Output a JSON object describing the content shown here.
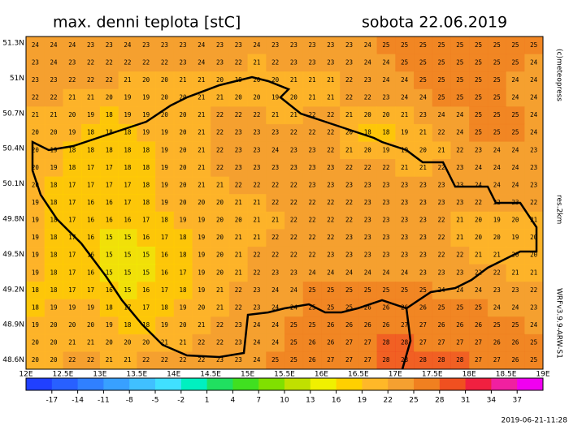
{
  "header": {
    "title": "max. denni teplota [stC]",
    "date": "sobota 22.06.2019"
  },
  "side": {
    "copyright": "(c)meteopress",
    "resolution": "res.2km",
    "model": "WRFv3.9.9-ARW-S1"
  },
  "timestamp": "2019-06-21-11:28",
  "lat_labels": [
    "51.3N",
    "51N",
    "50.7N",
    "50.4N",
    "50.1N",
    "49.8N",
    "49.5N",
    "49.2N",
    "48.9N",
    "48.6N"
  ],
  "lon_labels": [
    "12E",
    "12.5E",
    "13E",
    "13.5E",
    "14E",
    "14.5E",
    "15E",
    "15.5E",
    "16E",
    "16.5E",
    "17E",
    "17.5E",
    "18E",
    "18.5E",
    "19E"
  ],
  "colorbar": {
    "range": [
      -20,
      40
    ],
    "ticks": [
      -17,
      -14,
      -11,
      -8,
      -5,
      -2,
      1,
      4,
      7,
      10,
      13,
      16,
      19,
      22,
      25,
      28,
      31,
      34,
      37
    ],
    "colors": [
      "#2040ff",
      "#2860ff",
      "#3080ff",
      "#38a0ff",
      "#40c0ff",
      "#40e0ff",
      "#00f0c0",
      "#20e060",
      "#40e020",
      "#80e000",
      "#c0e000",
      "#f0f000",
      "#ffd000",
      "#ffb828",
      "#f5a030",
      "#f08020",
      "#f05020",
      "#f02040",
      "#f020a0",
      "#f000f0"
    ]
  },
  "grid": [
    [
      24,
      24,
      24,
      23,
      23,
      24,
      23,
      23,
      23,
      24,
      23,
      23,
      24,
      23,
      23,
      23,
      23,
      23,
      24,
      25,
      25,
      25,
      25,
      25,
      25,
      25,
      25,
      25
    ],
    [
      23,
      24,
      23,
      22,
      22,
      22,
      22,
      22,
      23,
      24,
      23,
      22,
      21,
      22,
      23,
      23,
      23,
      23,
      24,
      24,
      25,
      25,
      25,
      25,
      25,
      25,
      25,
      24
    ],
    [
      23,
      23,
      22,
      22,
      22,
      21,
      20,
      20,
      21,
      21,
      20,
      19,
      20,
      20,
      21,
      21,
      21,
      22,
      23,
      24,
      24,
      25,
      25,
      25,
      25,
      25,
      24,
      24
    ],
    [
      22,
      22,
      21,
      21,
      20,
      19,
      19,
      20,
      20,
      21,
      21,
      20,
      20,
      19,
      20,
      21,
      21,
      22,
      22,
      23,
      24,
      24,
      25,
      25,
      25,
      25,
      24,
      24
    ],
    [
      21,
      21,
      20,
      19,
      18,
      19,
      19,
      20,
      20,
      21,
      22,
      22,
      22,
      21,
      21,
      22,
      22,
      21,
      20,
      20,
      21,
      23,
      24,
      24,
      25,
      25,
      25,
      24
    ],
    [
      20,
      20,
      19,
      18,
      18,
      18,
      19,
      19,
      20,
      21,
      22,
      23,
      23,
      23,
      22,
      22,
      22,
      20,
      18,
      18,
      19,
      21,
      22,
      24,
      25,
      25,
      25,
      24
    ],
    [
      20,
      19,
      18,
      18,
      18,
      18,
      18,
      19,
      20,
      21,
      22,
      23,
      23,
      24,
      23,
      23,
      22,
      21,
      20,
      19,
      19,
      20,
      21,
      22,
      23,
      24,
      24,
      23
    ],
    [
      20,
      19,
      18,
      17,
      17,
      18,
      18,
      19,
      20,
      21,
      22,
      23,
      23,
      23,
      23,
      23,
      23,
      22,
      22,
      22,
      21,
      21,
      22,
      23,
      24,
      24,
      24,
      23
    ],
    [
      20,
      18,
      17,
      17,
      17,
      17,
      18,
      19,
      20,
      21,
      21,
      22,
      22,
      22,
      22,
      23,
      23,
      23,
      23,
      23,
      23,
      23,
      23,
      23,
      24,
      24,
      24,
      23
    ],
    [
      19,
      18,
      17,
      16,
      16,
      17,
      18,
      19,
      20,
      20,
      20,
      21,
      21,
      22,
      22,
      22,
      22,
      22,
      23,
      23,
      23,
      23,
      23,
      23,
      22,
      22,
      23,
      22
    ],
    [
      19,
      18,
      17,
      16,
      16,
      16,
      17,
      18,
      19,
      19,
      20,
      20,
      21,
      21,
      22,
      22,
      22,
      22,
      23,
      23,
      23,
      23,
      22,
      21,
      20,
      19,
      20,
      21
    ],
    [
      19,
      18,
      17,
      16,
      15,
      15,
      16,
      17,
      18,
      19,
      20,
      21,
      21,
      22,
      22,
      22,
      22,
      23,
      23,
      23,
      23,
      23,
      22,
      21,
      20,
      20,
      19,
      20
    ],
    [
      19,
      18,
      17,
      16,
      15,
      15,
      15,
      16,
      18,
      19,
      20,
      21,
      22,
      22,
      22,
      22,
      23,
      23,
      23,
      23,
      23,
      23,
      22,
      22,
      21,
      21,
      20,
      20
    ],
    [
      19,
      18,
      17,
      16,
      15,
      15,
      15,
      16,
      17,
      19,
      20,
      21,
      22,
      23,
      23,
      24,
      24,
      24,
      24,
      24,
      24,
      23,
      23,
      23,
      22,
      22,
      21,
      21
    ],
    [
      18,
      18,
      17,
      17,
      16,
      15,
      16,
      17,
      18,
      19,
      21,
      22,
      23,
      24,
      24,
      25,
      25,
      25,
      25,
      25,
      25,
      25,
      24,
      24,
      24,
      23,
      23,
      22
    ],
    [
      18,
      19,
      19,
      19,
      18,
      17,
      17,
      18,
      19,
      20,
      21,
      22,
      23,
      24,
      24,
      25,
      25,
      25,
      26,
      26,
      26,
      26,
      25,
      25,
      25,
      24,
      24,
      23
    ],
    [
      19,
      20,
      20,
      20,
      19,
      18,
      18,
      19,
      20,
      21,
      22,
      23,
      24,
      24,
      25,
      25,
      26,
      26,
      26,
      26,
      27,
      27,
      26,
      26,
      26,
      25,
      25,
      24
    ],
    [
      20,
      20,
      21,
      21,
      20,
      20,
      20,
      21,
      21,
      22,
      22,
      23,
      24,
      24,
      25,
      26,
      26,
      27,
      27,
      28,
      28,
      27,
      27,
      27,
      27,
      26,
      26,
      25
    ],
    [
      20,
      20,
      22,
      22,
      21,
      21,
      22,
      22,
      22,
      22,
      23,
      23,
      24,
      25,
      25,
      26,
      27,
      27,
      27,
      28,
      28,
      28,
      28,
      28,
      27,
      27,
      26,
      25
    ]
  ]
}
